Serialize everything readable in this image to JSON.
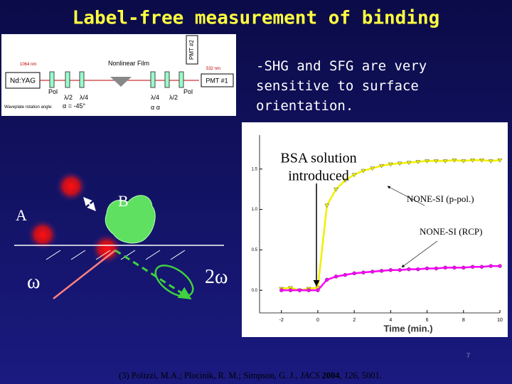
{
  "title": "Label-free measurement of binding",
  "setup": {
    "laser": "Nd:YAG",
    "wavelength_in": "1064 nm",
    "wavelength_out": "532 nm",
    "pol_1": "Pol",
    "half_wave_1": "λ/2",
    "quarter_wave_1": "λ/4",
    "sample": "Nonlinear Film",
    "quarter_wave_2": "λ/4",
    "half_wave_2": "λ/2",
    "pol_2": "Pol",
    "detector_1": "PMT #1",
    "detector_2": "PMT #2",
    "rotation_label": "Waveplate rotation angle:",
    "rotation_1": "α = -45°",
    "rotation_2": "α  α"
  },
  "bullet": [
    "-SHG and SFG are very",
    "sensitive to surface",
    "orientation."
  ],
  "scheme": {
    "label_a": "A",
    "label_b": "B",
    "omega": "ω",
    "two_omega": "2ω"
  },
  "chart_data": {
    "type": "scatter",
    "annotation": [
      "BSA solution",
      "introduced"
    ],
    "x_label": "Time (min.)",
    "xlim": [
      -3.2,
      10
    ],
    "xticks": [
      -2,
      0,
      2,
      4,
      6,
      8,
      10
    ],
    "ylim": [
      -0.28,
      1.92
    ],
    "yticks": [
      {
        "value": 0,
        "label": "0.0"
      },
      {
        "value": 0.5,
        "label": "0.5"
      },
      {
        "value": 1,
        "label": "1.0"
      },
      {
        "value": 1.5,
        "label": "1.5"
      }
    ],
    "x": [
      -2,
      -1.5,
      -1,
      -0.5,
      0,
      0.5,
      1,
      1.5,
      2,
      2.5,
      3,
      3.5,
      4,
      4.5,
      5,
      5.5,
      6,
      6.5,
      7,
      7.5,
      8,
      8.5,
      9,
      9.5,
      10
    ],
    "series": [
      {
        "name": "NONE-SI (p-pol.)",
        "color": "#f0f000",
        "marker": "triangle",
        "values": [
          0.02,
          0.03,
          0.0,
          0.02,
          0.03,
          1.05,
          1.25,
          1.36,
          1.43,
          1.48,
          1.51,
          1.54,
          1.56,
          1.57,
          1.58,
          1.59,
          1.6,
          1.6,
          1.6,
          1.61,
          1.6,
          1.61,
          1.61,
          1.6,
          1.61
        ]
      },
      {
        "name": "NONE-SI (RCP)",
        "color": "#ff00ff",
        "marker": "circle",
        "values": [
          0.0,
          0.0,
          0.0,
          0.0,
          0.0,
          0.13,
          0.17,
          0.19,
          0.21,
          0.22,
          0.23,
          0.24,
          0.25,
          0.25,
          0.26,
          0.26,
          0.27,
          0.27,
          0.28,
          0.28,
          0.28,
          0.29,
          0.29,
          0.3,
          0.3
        ]
      }
    ]
  },
  "page_number": "7",
  "reference": [
    "(3) Polizzi, M.A.; Plocinik, R. M.; Simpson, G. J., ",
    "JACS",
    " ",
    "2004",
    ", ",
    "126",
    ", 5001."
  ]
}
